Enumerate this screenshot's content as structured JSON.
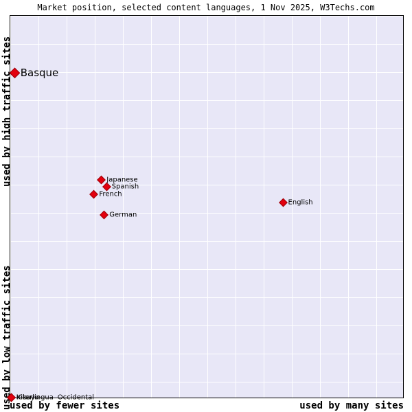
{
  "title": "Market position, selected content languages, 1 Nov 2025, W3Techs.com",
  "axes": {
    "y_top": "used by high traffic sites",
    "y_bottom": "used by low traffic sites",
    "x_left": "used by fewer sites",
    "x_right": "used by many sites"
  },
  "colors": {
    "marker_fill": "#e3000e",
    "marker_edge": "#990008",
    "plot_bg": "#e8e7f7",
    "grid_line": "#ffffff",
    "border": "#000000"
  },
  "chart_data": {
    "type": "scatter",
    "title": "Market position, selected content languages, 1 Nov 2025, W3Techs.com",
    "x_axis": {
      "label_left": "used by fewer sites",
      "label_right": "used by many sites",
      "meaning": "number of sites using the language"
    },
    "y_axis": {
      "label_top": "used by high traffic sites",
      "label_bottom": "used by low traffic sites",
      "meaning": "traffic level of sites using the language"
    },
    "grid": true,
    "points": [
      {
        "label": "Basque",
        "x_pct": 1.0,
        "y_pct": 14.9,
        "big": true
      },
      {
        "label": "Japanese",
        "x_pct": 23.3,
        "y_pct": 43.0
      },
      {
        "label": "Spanish",
        "x_pct": 24.6,
        "y_pct": 44.8
      },
      {
        "label": "French",
        "x_pct": 21.4,
        "y_pct": 46.8
      },
      {
        "label": "German",
        "x_pct": 24.0,
        "y_pct": 52.2
      },
      {
        "label": "English",
        "x_pct": 69.5,
        "y_pct": 48.9
      },
      {
        "label": "Interlingua",
        "x_pct": 0.3,
        "y_pct": 100
      },
      {
        "label": "Kikuyu",
        "x_pct": 0.3,
        "y_pct": 100
      },
      {
        "label": "Occidental",
        "x_pct": 0.3,
        "y_pct": 100,
        "label_offset": 60
      }
    ]
  }
}
